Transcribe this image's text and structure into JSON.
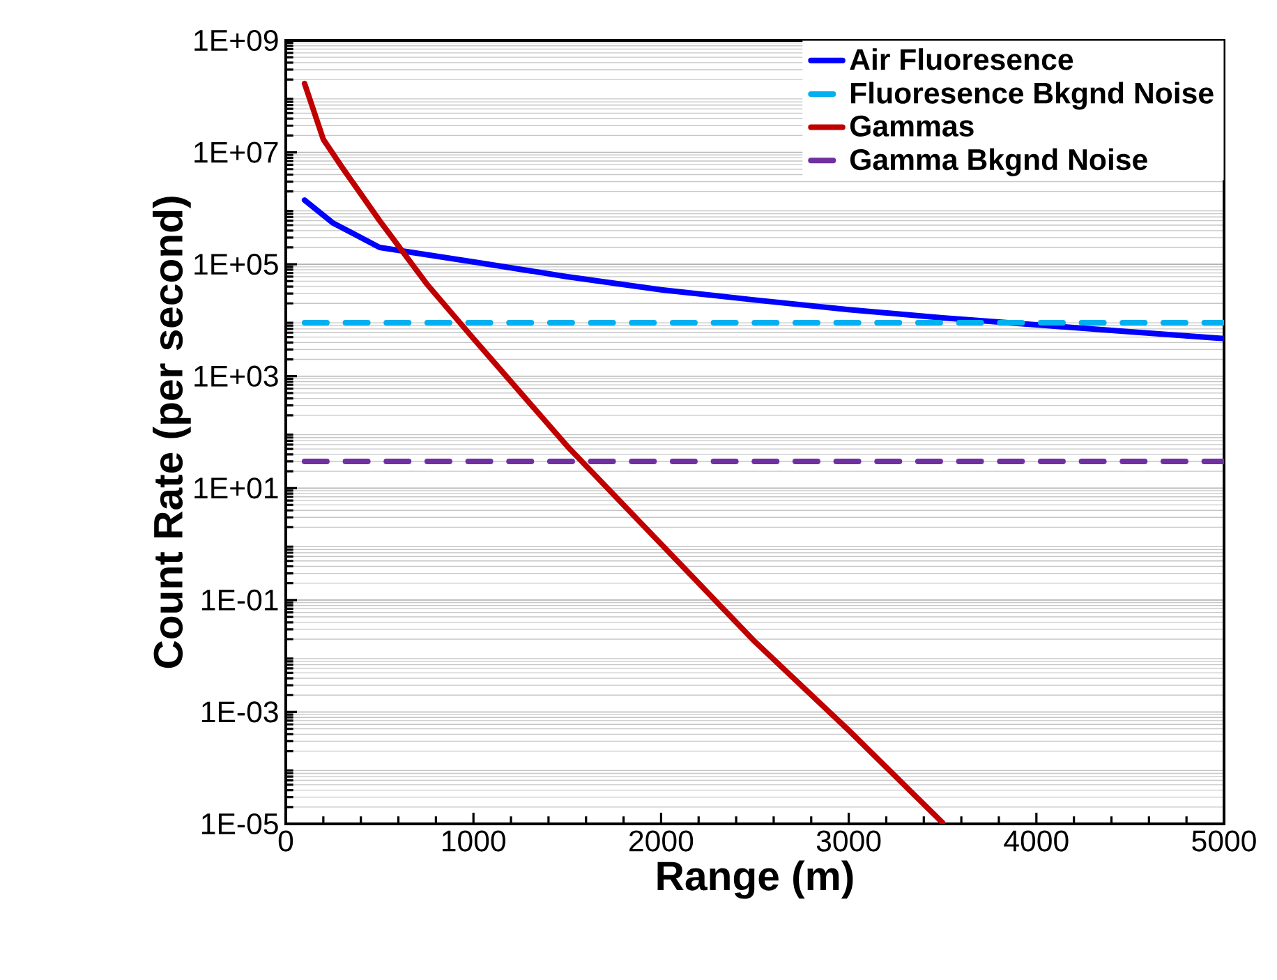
{
  "chart_data": {
    "type": "line",
    "xlabel": "Range (m)",
    "ylabel": "Count Rate (per second)",
    "xlim": [
      0,
      5000
    ],
    "xticks": [
      0,
      1000,
      2000,
      3000,
      4000,
      5000
    ],
    "ylim": [
      1e-05,
      1000000000.0
    ],
    "yticks": [
      {
        "value": 1e-05,
        "label": "1E-05"
      },
      {
        "value": 0.001,
        "label": "1E-03"
      },
      {
        "value": 0.1,
        "label": "1E-01"
      },
      {
        "value": 10,
        "label": "1E+01"
      },
      {
        "value": 1000,
        "label": "1E+03"
      },
      {
        "value": 100000,
        "label": "1E+05"
      },
      {
        "value": 10000000,
        "label": "1E+07"
      },
      {
        "value": 1000000000,
        "label": "1E+09"
      }
    ],
    "log": "y",
    "grid": "y",
    "legend": "top right",
    "series": [
      {
        "name": "Air Fluoresence",
        "color": "#0000ff",
        "line_style": "solid",
        "x": [
          100,
          250,
          500,
          1000,
          1500,
          2000,
          2500,
          3000,
          3500,
          4000,
          4500,
          5000
        ],
        "values": [
          1400000,
          550000,
          200000,
          110000,
          60000,
          35000,
          23000,
          15500,
          11000,
          8300,
          6200,
          4700
        ]
      },
      {
        "name": "Fluoresence Bkgnd Noise",
        "color": "#00b0f0",
        "line_style": "dashed",
        "x": [
          100,
          5000
        ],
        "values": [
          9000,
          9000
        ]
      },
      {
        "name": "Gammas",
        "color": "#c00000",
        "line_style": "solid",
        "x": [
          100,
          200,
          300,
          500,
          750,
          1000,
          1500,
          2000,
          2500,
          3000,
          3500
        ],
        "values": [
          170000000,
          17000000,
          5400000,
          600000,
          45000,
          4700,
          56,
          1,
          0.018,
          0.00047,
          1.05e-05
        ]
      },
      {
        "name": "Gamma Bkgnd Noise",
        "color": "#7030a0",
        "line_style": "dashed",
        "x": [
          100,
          5000
        ],
        "values": [
          30,
          30
        ]
      }
    ]
  }
}
